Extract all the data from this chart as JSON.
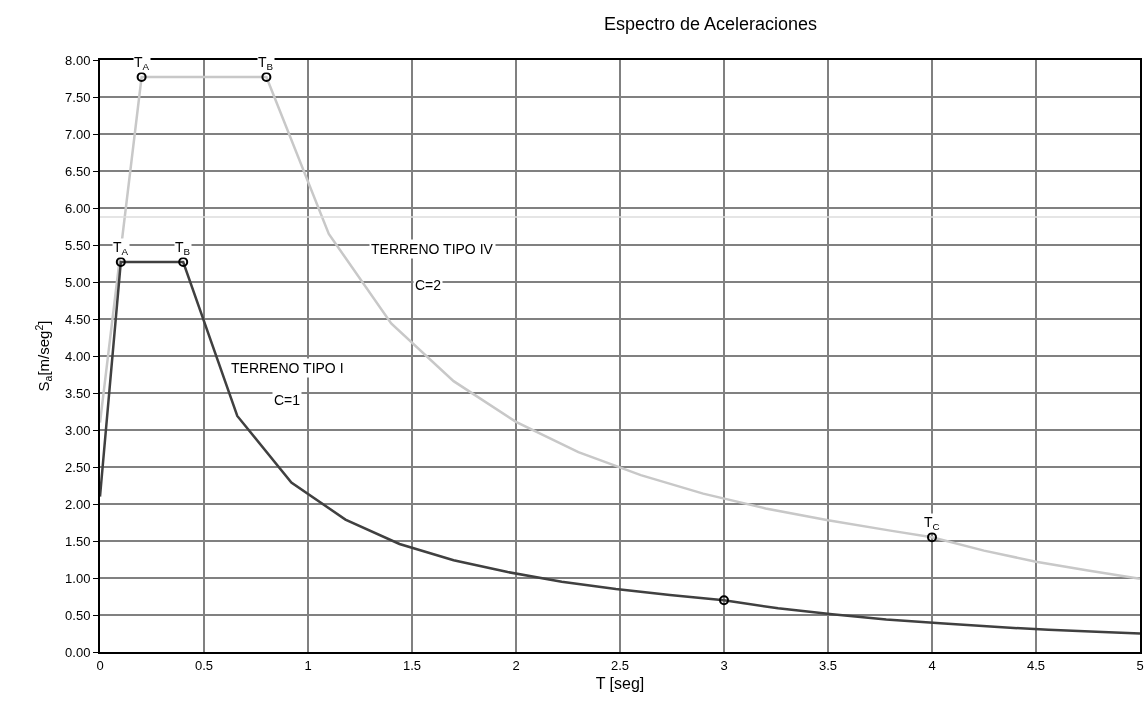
{
  "chart_data": {
    "type": "line",
    "title": "Espectro de Aceleraciones",
    "xlabel": "T [seg]",
    "ylabel": "S$_{a}$[m/seg$^{2}$]",
    "xlim": [
      0,
      5
    ],
    "xticks": [
      0,
      0.5,
      1,
      1.5,
      2,
      2.5,
      3,
      3.5,
      4,
      4.5,
      5
    ],
    "ylim": [
      0,
      8
    ],
    "yticks": [
      {
        "value": 0,
        "label": "0.00"
      },
      {
        "value": 0.5,
        "label": "0.50"
      },
      {
        "value": 1,
        "label": "1.00"
      },
      {
        "value": 1.5,
        "label": "1.50"
      },
      {
        "value": 2,
        "label": "2.00"
      },
      {
        "value": 2.5,
        "label": "2.50"
      },
      {
        "value": 3,
        "label": "3.00"
      },
      {
        "value": 3.5,
        "label": "3.50"
      },
      {
        "value": 4,
        "label": "4.00"
      },
      {
        "value": 4.5,
        "label": "4.50"
      },
      {
        "value": 5,
        "label": "5.00"
      },
      {
        "value": 5.5,
        "label": "5.50"
      },
      {
        "value": 6,
        "label": "6.00"
      },
      {
        "value": 6.5,
        "label": "6.50"
      },
      {
        "value": 7,
        "label": "7.00"
      },
      {
        "value": 7.5,
        "label": "7.50"
      },
      {
        "value": 8,
        "label": "8.00"
      }
    ],
    "grid": true,
    "line_style": "solid",
    "series": [
      {
        "color": "#c8c8c8",
        "marker": "none",
        "x": [
          0,
          0.2,
          0.8,
          1.1,
          1.4,
          1.7,
          2.0,
          2.3,
          2.6,
          2.9,
          3.2,
          3.5,
          3.8,
          4.0,
          4.25,
          4.5,
          4.75,
          5.0
        ],
        "values": [
          3.1,
          7.77,
          7.77,
          5.65,
          4.44,
          3.66,
          3.11,
          2.7,
          2.39,
          2.14,
          1.94,
          1.78,
          1.64,
          1.55,
          1.37,
          1.22,
          1.1,
          0.99
        ]
      },
      {
        "color": "#404040",
        "marker": "none",
        "x": [
          0,
          0.1,
          0.4,
          0.66,
          0.92,
          1.18,
          1.44,
          1.7,
          1.96,
          2.22,
          2.48,
          2.74,
          3.0,
          3.26,
          3.52,
          3.78,
          4.04,
          4.3,
          4.56,
          4.82,
          5.0
        ],
        "values": [
          2.1,
          5.27,
          5.27,
          3.19,
          2.29,
          1.79,
          1.46,
          1.24,
          1.08,
          0.95,
          0.85,
          0.77,
          0.7,
          0.59,
          0.51,
          0.44,
          0.39,
          0.34,
          0.3,
          0.27,
          0.25
        ]
      },
      {
        "type": "scatter",
        "color": "#000000",
        "marker": "circle",
        "x": [
          0.2,
          0.8,
          0.1,
          0.4,
          4.0
        ],
        "values": [
          7.77,
          7.77,
          5.27,
          5.27,
          1.55
        ]
      },
      {
        "type": "scatter",
        "color": "#000000",
        "marker": "circle",
        "x": [
          3.0
        ],
        "values": [
          0.7
        ]
      }
    ],
    "ref_lines": [
      {
        "axis": "y",
        "value": 5.88,
        "color": "#dcdcdc"
      }
    ],
    "annotations": [
      {
        "text": "T$_{A}$",
        "x": 0.2,
        "y": 7.77
      },
      {
        "text": "T$_{B}$",
        "x": 0.8,
        "y": 7.77
      },
      {
        "text": "T$_{A}$",
        "x": 0.1,
        "y": 5.27
      },
      {
        "text": "T$_{B}$",
        "x": 0.4,
        "y": 5.27
      },
      {
        "text": "T$_{C}$",
        "x": 4.0,
        "y": 1.55
      },
      "TERRENO TIPO IV",
      "C=2",
      "TERRENO TIPO I",
      "C=1"
    ]
  }
}
